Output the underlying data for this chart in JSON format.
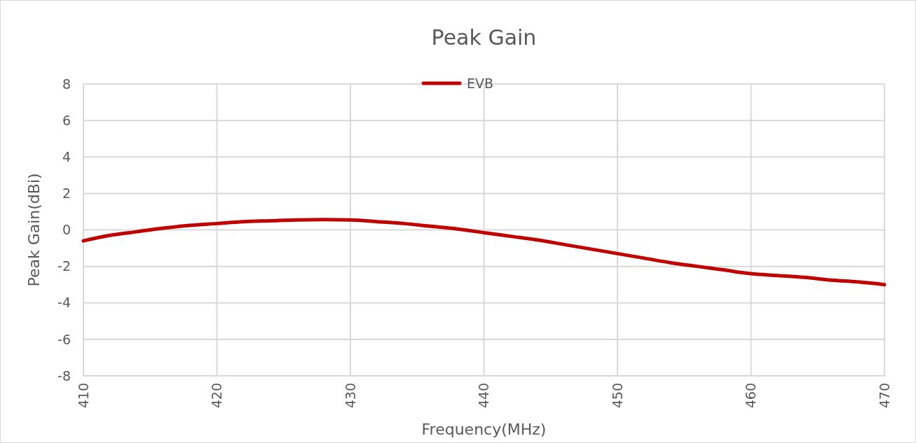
{
  "chart_data": {
    "type": "line",
    "title": "Peak Gain",
    "xlabel": "Frequency(MHz)",
    "ylabel": "Peak Gain(dBi)",
    "x": [
      410,
      412,
      414,
      416,
      418,
      420,
      422,
      424,
      426,
      428,
      430,
      432,
      434,
      436,
      438,
      440,
      442,
      444,
      446,
      448,
      450,
      452,
      454,
      456,
      458,
      460,
      462,
      464,
      466,
      468,
      470
    ],
    "series": [
      {
        "name": "EVB",
        "color": "#c00000",
        "values": [
          -0.6,
          -0.3,
          -0.1,
          0.1,
          0.25,
          0.35,
          0.45,
          0.5,
          0.55,
          0.57,
          0.55,
          0.45,
          0.35,
          0.2,
          0.05,
          -0.15,
          -0.35,
          -0.55,
          -0.8,
          -1.05,
          -1.3,
          -1.55,
          -1.8,
          -2.0,
          -2.2,
          -2.4,
          -2.5,
          -2.6,
          -2.75,
          -2.85,
          -3.0
        ]
      }
    ],
    "xlim": [
      410,
      470
    ],
    "xticks": [
      410,
      420,
      430,
      440,
      450,
      460,
      470
    ],
    "ylim": [
      -8,
      8
    ],
    "yticks": [
      -8,
      -6,
      -4,
      -2,
      0,
      2,
      4,
      6,
      8
    ],
    "grid": true,
    "legend": "top",
    "marker": "none",
    "line_style": "solid"
  }
}
